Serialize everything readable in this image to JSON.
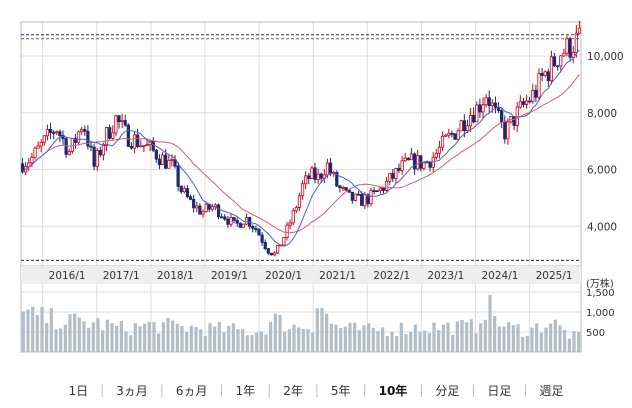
{
  "chart_data": {
    "type": "candlestick",
    "title": "",
    "price_axis": {
      "ylim": [
        2600,
        11200
      ],
      "ticks": [
        "4,000",
        "6,000",
        "8,000",
        "10,000"
      ],
      "tick_values": [
        4000,
        6000,
        8000,
        10000
      ]
    },
    "volume_axis": {
      "unit_label": "(万株)",
      "ylim": [
        0,
        1700
      ],
      "ticks": [
        "500",
        "1,000",
        "1,500"
      ],
      "tick_values": [
        500,
        1000,
        1500
      ]
    },
    "x_tick_labels": [
      "2016/1",
      "2017/1",
      "2018/1",
      "2019/1",
      "2020/1",
      "2021/1",
      "2022/1",
      "2023/1",
      "2024/1",
      "2025/1"
    ],
    "x_tick_years": [
      2016,
      2017,
      2018,
      2019,
      2020,
      2021,
      2022,
      2023,
      2024,
      2025
    ],
    "x_range": [
      2015.6,
      2025.95
    ],
    "reference_lines": {
      "high": 10750,
      "low": 2800
    },
    "price_path": [
      [
        2015.6,
        6200
      ],
      [
        2015.8,
        6400
      ],
      [
        2016.0,
        6900
      ],
      [
        2016.25,
        7500
      ],
      [
        2016.5,
        6600
      ],
      [
        2016.75,
        7700
      ],
      [
        2016.95,
        6100
      ],
      [
        2017.15,
        7100
      ],
      [
        2017.35,
        7800
      ],
      [
        2017.55,
        7200
      ],
      [
        2017.75,
        7000
      ],
      [
        2018.0,
        6700
      ],
      [
        2018.2,
        6400
      ],
      [
        2018.4,
        6100
      ],
      [
        2018.55,
        5300
      ],
      [
        2018.75,
        4800
      ],
      [
        2018.95,
        4500
      ],
      [
        2019.15,
        4700
      ],
      [
        2019.35,
        4400
      ],
      [
        2019.55,
        4000
      ],
      [
        2019.75,
        4300
      ],
      [
        2019.95,
        3900
      ],
      [
        2020.15,
        3200
      ],
      [
        2020.3,
        3000
      ],
      [
        2020.5,
        3800
      ],
      [
        2020.65,
        4500
      ],
      [
        2020.8,
        5400
      ],
      [
        2020.95,
        5800
      ],
      [
        2021.1,
        5700
      ],
      [
        2021.25,
        6200
      ],
      [
        2021.45,
        5400
      ],
      [
        2021.65,
        5000
      ],
      [
        2021.85,
        4900
      ],
      [
        2022.05,
        5000
      ],
      [
        2022.25,
        5300
      ],
      [
        2022.45,
        5700
      ],
      [
        2022.65,
        6100
      ],
      [
        2022.85,
        6300
      ],
      [
        2023.05,
        6200
      ],
      [
        2023.25,
        6500
      ],
      [
        2023.45,
        7000
      ],
      [
        2023.65,
        7400
      ],
      [
        2023.85,
        7900
      ],
      [
        2024.05,
        8200
      ],
      [
        2024.2,
        8700
      ],
      [
        2024.4,
        7800
      ],
      [
        2024.55,
        7300
      ],
      [
        2024.75,
        7900
      ],
      [
        2024.95,
        8400
      ],
      [
        2025.1,
        8700
      ],
      [
        2025.25,
        9300
      ],
      [
        2025.4,
        9600
      ],
      [
        2025.55,
        10100
      ],
      [
        2025.72,
        10300
      ],
      [
        2025.9,
        10600
      ]
    ],
    "volume_profile": [
      [
        2015.6,
        1050
      ],
      [
        2016.0,
        950
      ],
      [
        2016.5,
        850
      ],
      [
        2017.0,
        800
      ],
      [
        2017.5,
        650
      ],
      [
        2018.0,
        750
      ],
      [
        2018.5,
        700
      ],
      [
        2019.0,
        650
      ],
      [
        2019.5,
        620
      ],
      [
        2020.0,
        550
      ],
      [
        2020.3,
        900
      ],
      [
        2020.6,
        700
      ],
      [
        2021.0,
        750
      ],
      [
        2021.1,
        1500
      ],
      [
        2021.3,
        800
      ],
      [
        2021.6,
        650
      ],
      [
        2022.0,
        600
      ],
      [
        2022.5,
        650
      ],
      [
        2023.0,
        700
      ],
      [
        2023.5,
        700
      ],
      [
        2024.0,
        700
      ],
      [
        2024.2,
        1350
      ],
      [
        2024.5,
        700
      ],
      [
        2025.0,
        600
      ],
      [
        2025.4,
        850
      ],
      [
        2025.7,
        500
      ],
      [
        2025.95,
        400
      ]
    ]
  },
  "period_buttons": [
    {
      "label": "1日",
      "active": false
    },
    {
      "label": "3ヵ月",
      "active": false
    },
    {
      "label": "6ヵ月",
      "active": false
    },
    {
      "label": "1年",
      "active": false
    },
    {
      "label": "2年",
      "active": false
    },
    {
      "label": "5年",
      "active": false
    },
    {
      "label": "10年",
      "active": true
    },
    {
      "label": "分足",
      "active": false
    },
    {
      "label": "日足",
      "active": false
    },
    {
      "label": "週足",
      "active": false
    }
  ],
  "colors": {
    "up": "#d0021b",
    "down": "#1a2a6c",
    "ma_short": "#4a63c8",
    "ma_long": "#d06070",
    "volume": "#b3bdc6",
    "refline": "#1a2a6c",
    "grid": "#dddddd"
  }
}
